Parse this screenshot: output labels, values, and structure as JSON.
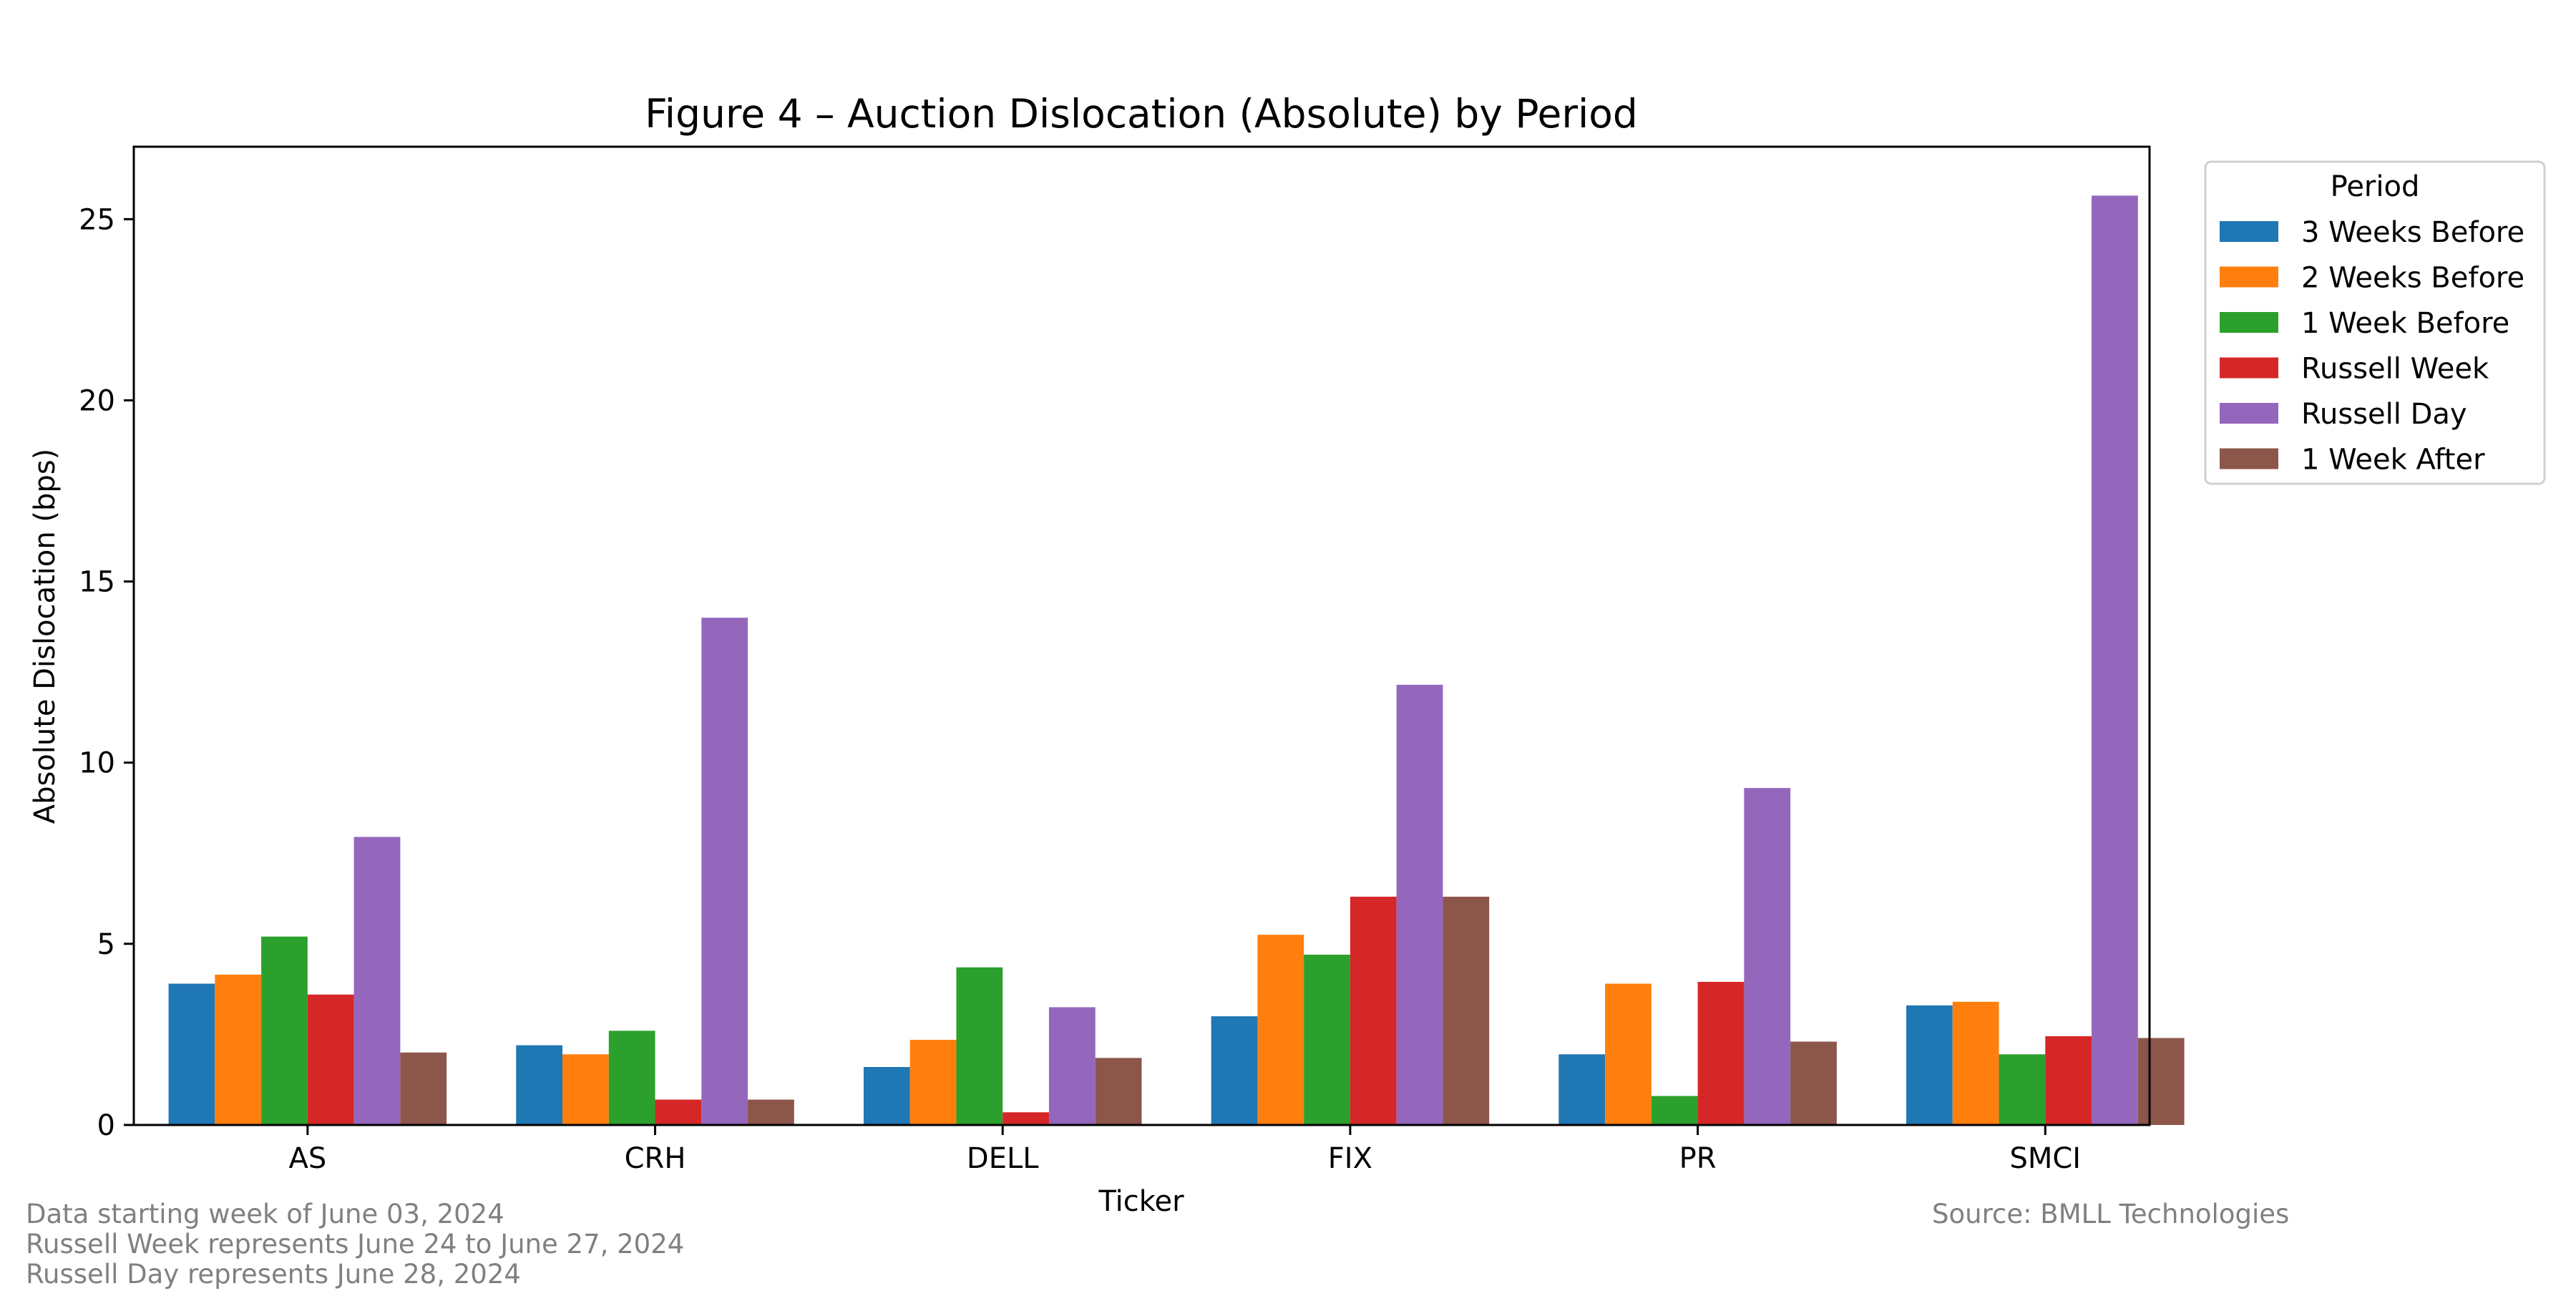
{
  "chart_data": {
    "type": "bar",
    "title": "Figure 4 – Auction Dislocation (Absolute) by Period",
    "xlabel": "Ticker",
    "ylabel": "Absolute Dislocation (bps)",
    "ylim": [
      0,
      27
    ],
    "yticks": [
      0,
      5,
      10,
      15,
      20,
      25
    ],
    "categories": [
      "AS",
      "CRH",
      "DELL",
      "FIX",
      "PR",
      "SMCI"
    ],
    "legend": {
      "title": "Period",
      "placement": "outside-top-right"
    },
    "grid": false,
    "series": [
      {
        "name": "3 Weeks Before",
        "color": "#1f77b4",
        "values": [
          3.9,
          2.2,
          1.6,
          3.0,
          1.95,
          3.3
        ]
      },
      {
        "name": "2 Weeks Before",
        "color": "#ff7f0e",
        "values": [
          4.15,
          1.95,
          2.35,
          5.25,
          3.9,
          3.4
        ]
      },
      {
        "name": "1 Week Before",
        "color": "#2ca02c",
        "values": [
          5.2,
          2.6,
          4.35,
          4.7,
          0.8,
          1.95
        ]
      },
      {
        "name": "Russell Week",
        "color": "#d62728",
        "values": [
          3.6,
          0.7,
          0.35,
          6.3,
          3.95,
          2.45
        ]
      },
      {
        "name": "Russell Day",
        "color": "#9467bd",
        "values": [
          7.95,
          14.0,
          3.25,
          12.15,
          9.3,
          25.65
        ]
      },
      {
        "name": "1 Week After",
        "color": "#8c564b",
        "values": [
          2.0,
          0.7,
          1.85,
          6.3,
          2.3,
          2.4
        ]
      }
    ]
  },
  "footnotes": {
    "line1": "Data starting week of June 03, 2024",
    "line2": "Russell Week represents June 24 to June 27, 2024",
    "line3": "Russell Day represents June 28, 2024",
    "source": "Source: BMLL Technologies"
  }
}
